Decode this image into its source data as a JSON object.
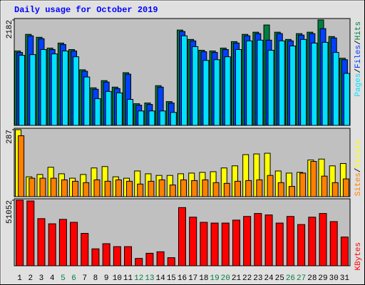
{
  "title": "Daily usage for October 2019",
  "legend_separator": "/",
  "chart_data": [
    {
      "type": "bar",
      "ylim": [
        0,
        2182
      ],
      "yticks": [
        2182
      ],
      "series": [
        {
          "name": "Hits",
          "color": "#008040",
          "values": [
            1540,
            1884,
            1824,
            1600,
            1704,
            1570,
            1151,
            778,
            927,
            792,
            1091,
            449,
            464,
            822,
            493,
            1973,
            1779,
            1555,
            1540,
            1600,
            1734,
            1884,
            1929,
            2078,
            1929,
            1779,
            1899,
            1929,
            2182,
            1839,
            1390
          ]
        },
        {
          "name": "Files",
          "color": "#0040ff",
          "values": [
            1510,
            1854,
            1794,
            1570,
            1674,
            1540,
            1121,
            748,
            897,
            762,
            1061,
            419,
            434,
            792,
            463,
            1943,
            1749,
            1525,
            1510,
            1570,
            1704,
            1854,
            1899,
            1764,
            1899,
            1749,
            1869,
            1899,
            2003,
            1809,
            1360
          ]
        },
        {
          "name": "Pages",
          "color": "#00e0ff",
          "values": [
            1450,
            1465,
            1570,
            1480,
            1540,
            1420,
            1002,
            553,
            703,
            673,
            538,
            299,
            299,
            299,
            269,
            1854,
            1630,
            1345,
            1360,
            1420,
            1570,
            1749,
            1764,
            1555,
            1749,
            1644,
            1779,
            1704,
            1719,
            1510,
            1076
          ]
        }
      ]
    },
    {
      "type": "bar",
      "ylim": [
        0,
        287
      ],
      "yticks": [
        287
      ],
      "series": [
        {
          "name": "Visits",
          "color": "#ffff00",
          "values": [
            287,
            85,
            95,
            126,
            98,
            79,
            95,
            123,
            129,
            85,
            79,
            110,
            98,
            91,
            91,
            98,
            101,
            104,
            107,
            123,
            132,
            180,
            183,
            186,
            110,
            101,
            104,
            157,
            161,
            132,
            142
          ]
        },
        {
          "name": "Sites",
          "color": "#ff8000",
          "values": [
            261,
            79,
            79,
            79,
            72,
            66,
            60,
            72,
            66,
            72,
            66,
            54,
            66,
            72,
            50,
            72,
            69,
            72,
            60,
            57,
            66,
            69,
            72,
            91,
            60,
            44,
            101,
            151,
            88,
            60,
            76
          ]
        }
      ]
    },
    {
      "type": "bar",
      "ylim": [
        0,
        51052
      ],
      "yticks": [
        51052
      ],
      "categories": [
        "1",
        "2",
        "3",
        "4",
        "5",
        "6",
        "7",
        "8",
        "9",
        "10",
        "11",
        "12",
        "13",
        "14",
        "15",
        "16",
        "17",
        "18",
        "19",
        "20",
        "21",
        "22",
        "23",
        "24",
        "25",
        "26",
        "27",
        "28",
        "29",
        "30",
        "31"
      ],
      "category_colors": [
        "#000000",
        "#000000",
        "#000000",
        "#000000",
        "#008040",
        "#008040",
        "#000000",
        "#000000",
        "#000000",
        "#000000",
        "#000000",
        "#008040",
        "#008040",
        "#000000",
        "#000000",
        "#000000",
        "#000000",
        "#000000",
        "#008040",
        "#008040",
        "#000000",
        "#000000",
        "#000000",
        "#000000",
        "#000000",
        "#008040",
        "#008040",
        "#000000",
        "#000000",
        "#000000",
        "#000000"
      ],
      "series": [
        {
          "name": "KBytes",
          "color": "#ff0000",
          "values": [
            51052,
            50478,
            36710,
            32695,
            36136,
            33842,
            25238,
            13193,
            17208,
            14914,
            14914,
            5736,
            9751,
            10899,
            6310,
            45316,
            37859,
            33842,
            33269,
            33269,
            35563,
            38432,
            40726,
            39579,
            33269,
            38432,
            32122,
            37859,
            40726,
            34416,
            22370
          ]
        }
      ]
    }
  ]
}
